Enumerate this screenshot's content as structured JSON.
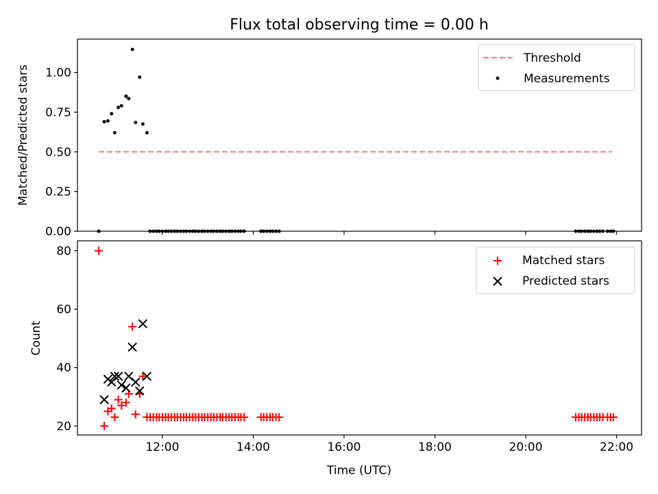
{
  "chart_data": [
    {
      "type": "scatter",
      "title": "Flux total observing time = 0.00 h",
      "xlabel": "",
      "ylabel": "Matched/Predicted stars",
      "x_unit": "hours UTC",
      "xlim": [
        10.13,
        22.55
      ],
      "ylim": [
        0.0,
        1.21
      ],
      "yticks": [
        0.0,
        0.25,
        0.5,
        0.75,
        1.0
      ],
      "ytick_labels": [
        "0.00",
        "0.25",
        "0.50",
        "0.75",
        "1.00"
      ],
      "xticks": [
        12,
        14,
        16,
        18,
        20,
        22
      ],
      "xtick_labels": [
        "",
        "",
        "",
        "",
        "",
        ""
      ],
      "legend_position": "top-right",
      "legend": [
        "Threshold",
        "Measurements"
      ],
      "series": [
        {
          "name": "Threshold",
          "style": "dashed-line",
          "color": "#f08080",
          "x": [
            10.6,
            21.9
          ],
          "y": [
            0.5,
            0.5
          ]
        },
        {
          "name": "Measurements",
          "style": "dot",
          "color": "#000000",
          "x": [
            10.6,
            10.72,
            10.8,
            10.88,
            10.95,
            11.03,
            11.1,
            11.2,
            11.26,
            11.34,
            11.41,
            11.5,
            11.57,
            11.66,
            11.73,
            11.8,
            11.87,
            11.93,
            12.0,
            12.07,
            12.13,
            12.2,
            12.27,
            12.33,
            12.4,
            12.47,
            12.53,
            12.6,
            12.67,
            12.73,
            12.8,
            12.87,
            12.93,
            13.0,
            13.07,
            13.13,
            13.2,
            13.27,
            13.33,
            13.4,
            13.47,
            13.53,
            13.6,
            13.67,
            13.73,
            13.8,
            14.17,
            14.23,
            14.3,
            14.37,
            14.43,
            14.5,
            14.57,
            21.1,
            21.17,
            21.23,
            21.3,
            21.37,
            21.43,
            21.5,
            21.57,
            21.63,
            21.7,
            21.8,
            21.87,
            21.93
          ],
          "y": [
            0.0,
            0.69,
            0.695,
            0.74,
            0.62,
            0.78,
            0.79,
            0.85,
            0.835,
            1.145,
            0.685,
            0.97,
            0.675,
            0.62,
            0.0,
            0.0,
            0.0,
            0.0,
            0.0,
            0.0,
            0.0,
            0.0,
            0.0,
            0.0,
            0.0,
            0.0,
            0.0,
            0.0,
            0.0,
            0.0,
            0.0,
            0.0,
            0.0,
            0.0,
            0.0,
            0.0,
            0.0,
            0.0,
            0.0,
            0.0,
            0.0,
            0.0,
            0.0,
            0.0,
            0.0,
            0.0,
            0.0,
            0.0,
            0.0,
            0.0,
            0.0,
            0.0,
            0.0,
            0.0,
            0.0,
            0.0,
            0.0,
            0.0,
            0.0,
            0.0,
            0.0,
            0.0,
            0.0,
            0.0,
            0.0,
            0.0
          ]
        }
      ]
    },
    {
      "type": "scatter",
      "title": "",
      "xlabel": "Time (UTC)",
      "ylabel": "Count",
      "x_unit": "hours UTC",
      "xlim": [
        10.13,
        22.55
      ],
      "ylim": [
        16.9,
        83.4
      ],
      "yticks": [
        20,
        40,
        60,
        80
      ],
      "ytick_labels": [
        "20",
        "40",
        "60",
        "80"
      ],
      "xticks": [
        12,
        14,
        16,
        18,
        20,
        22
      ],
      "xtick_labels": [
        "12:00",
        "14:00",
        "16:00",
        "18:00",
        "20:00",
        "22:00"
      ],
      "legend_position": "top-right",
      "legend": [
        "Matched stars",
        "Predicted stars"
      ],
      "series": [
        {
          "name": "Matched stars",
          "style": "plus",
          "color": "#ff0000",
          "x": [
            10.6,
            10.72,
            10.8,
            10.88,
            10.95,
            11.03,
            11.1,
            11.2,
            11.26,
            11.34,
            11.41,
            11.5,
            11.57,
            11.66,
            11.73,
            11.8,
            11.87,
            11.93,
            12.0,
            12.07,
            12.13,
            12.2,
            12.27,
            12.33,
            12.4,
            12.47,
            12.53,
            12.6,
            12.67,
            12.73,
            12.8,
            12.87,
            12.93,
            13.0,
            13.07,
            13.13,
            13.2,
            13.27,
            13.33,
            13.4,
            13.47,
            13.53,
            13.6,
            13.67,
            13.73,
            13.8,
            14.17,
            14.23,
            14.3,
            14.37,
            14.43,
            14.5,
            14.57,
            21.1,
            21.17,
            21.23,
            21.3,
            21.37,
            21.43,
            21.5,
            21.57,
            21.63,
            21.7,
            21.8,
            21.87,
            21.93
          ],
          "y": [
            80,
            20,
            25,
            26,
            23,
            29,
            27,
            28,
            31,
            54,
            24,
            31,
            37,
            23,
            23,
            23,
            23,
            23,
            23,
            23,
            23,
            23,
            23,
            23,
            23,
            23,
            23,
            23,
            23,
            23,
            23,
            23,
            23,
            23,
            23,
            23,
            23,
            23,
            23,
            23,
            23,
            23,
            23,
            23,
            23,
            23,
            23,
            23,
            23,
            23,
            23,
            23,
            23,
            23,
            23,
            23,
            23,
            23,
            23,
            23,
            23,
            23,
            23,
            23,
            23,
            23
          ]
        },
        {
          "name": "Predicted stars",
          "style": "x",
          "color": "#000000",
          "x": [
            10.72,
            10.8,
            10.88,
            10.95,
            11.03,
            11.1,
            11.2,
            11.26,
            11.34,
            11.41,
            11.5,
            11.57,
            11.66
          ],
          "y": [
            29,
            36,
            35,
            37,
            37,
            34,
            33,
            37,
            47,
            35,
            32,
            55,
            37
          ]
        }
      ]
    }
  ]
}
